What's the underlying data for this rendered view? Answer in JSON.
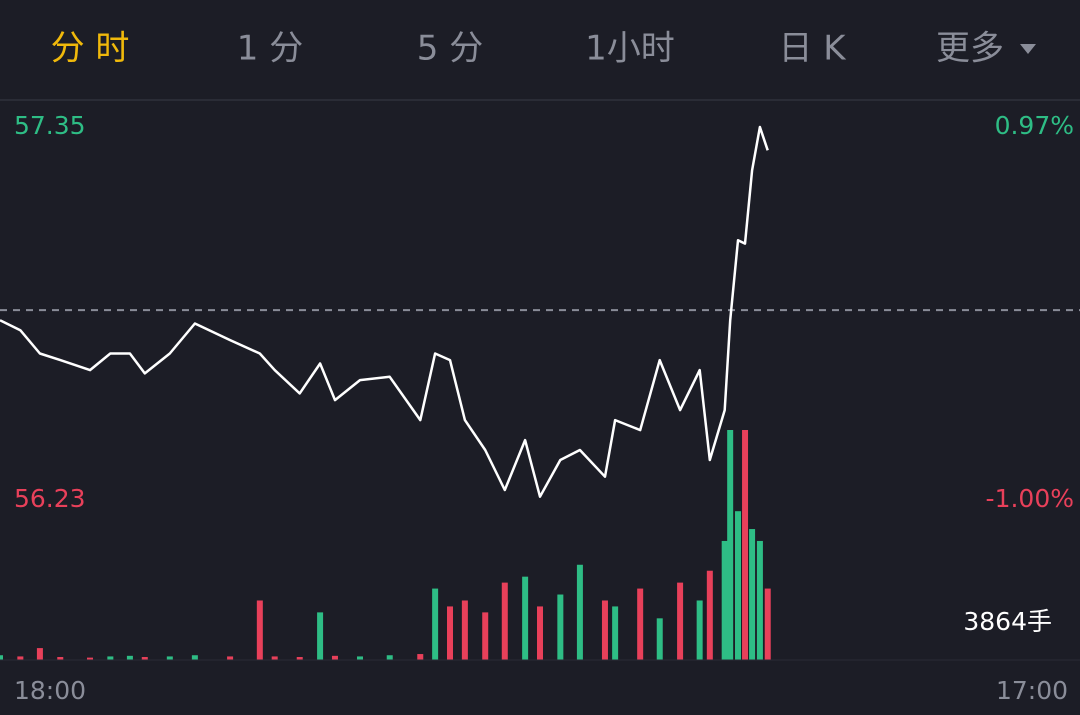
{
  "tabs": [
    {
      "label": "分 时",
      "active": true
    },
    {
      "label": "1 分"
    },
    {
      "label": "5 分"
    },
    {
      "label": "1小时"
    },
    {
      "label": "日 K"
    },
    {
      "label": "更多"
    }
  ],
  "chart_data": [
    {
      "type": "line",
      "x": [
        0,
        26,
        51,
        77,
        115,
        141,
        166,
        185,
        217,
        249,
        294,
        332,
        351,
        383,
        409,
        428,
        460,
        498,
        537,
        556,
        575,
        594,
        620,
        645,
        671,
        690,
        716,
        741,
        773,
        786,
        818,
        843,
        869,
        894,
        907,
        926,
        933,
        943,
        952,
        961,
        971,
        981
      ],
      "xlim": [
        0,
        1380
      ],
      "xticks": [
        {
          "value": 0,
          "label": "18:00"
        },
        {
          "value": 1380,
          "label": "17:00"
        }
      ],
      "series": [
        {
          "color": "#ffffff",
          "values": [
            56.77,
            56.74,
            56.67,
            56.65,
            56.62,
            56.67,
            56.67,
            56.61,
            56.67,
            56.76,
            56.71,
            56.67,
            56.62,
            56.55,
            56.64,
            56.53,
            56.59,
            56.6,
            56.47,
            56.67,
            56.65,
            56.47,
            56.38,
            56.26,
            56.41,
            56.24,
            56.35,
            56.38,
            56.3,
            56.47,
            56.44,
            56.65,
            56.5,
            56.62,
            56.35,
            56.5,
            56.77,
            57.01,
            57.0,
            57.22,
            57.35,
            57.28
          ]
        }
      ],
      "ylim": [
        56.23,
        57.35
      ],
      "yticks": [
        {
          "value": 57.35,
          "label": "57.35"
        },
        {
          "value": 56.23,
          "label": "56.23"
        }
      ],
      "y2lim": [
        -1.0,
        0.97
      ],
      "y2ticks": [
        {
          "value": 0.97,
          "label": "0.97%"
        },
        {
          "value": -1.0,
          "label": "-1.00%"
        }
      ],
      "reference": 56.8
    },
    {
      "type": "bar",
      "up_color": "#2ebd85",
      "down_color": "#e8405a",
      "values": [
        80,
        60,
        200,
        50,
        40,
        60,
        70,
        50,
        60,
        80,
        60,
        1000,
        60,
        50,
        800,
        70,
        60,
        80,
        100,
        1200,
        900,
        1000,
        800,
        1300,
        1400,
        900,
        1100,
        1600,
        1000,
        900,
        1200,
        700,
        1300,
        1000,
        1500,
        2000,
        3864,
        2500,
        3864,
        2200,
        2000,
        1200
      ],
      "ylim": [
        0,
        3864
      ],
      "yticks": [
        {
          "value": 3864,
          "label": "3864手"
        }
      ]
    }
  ]
}
